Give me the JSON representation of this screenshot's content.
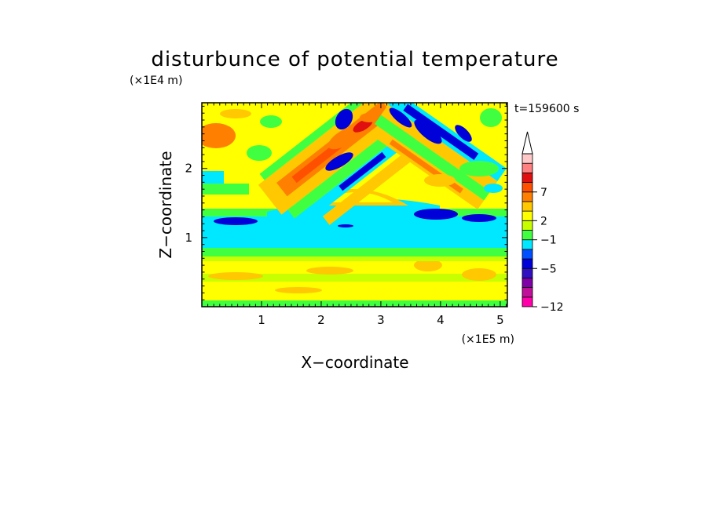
{
  "chart_data": {
    "type": "heatmap",
    "title": "disturbunce of potential temperature",
    "time_label": "t=159600 s",
    "xlabel": "X−coordinate",
    "ylabel": "Z−coordinate",
    "x_unit": "(×1E5 m)",
    "y_unit": "(×1E4 m)",
    "xlim": [
      0,
      5.12
    ],
    "ylim": [
      0,
      2.95
    ],
    "x_ticks": [
      {
        "v": 1,
        "label": "1"
      },
      {
        "v": 2,
        "label": "2"
      },
      {
        "v": 3,
        "label": "3"
      },
      {
        "v": 4,
        "label": "4"
      },
      {
        "v": 5,
        "label": "5"
      }
    ],
    "y_ticks": [
      {
        "v": 1,
        "label": "1"
      },
      {
        "v": 2,
        "label": "2"
      }
    ],
    "colorbar": {
      "levels": [
        {
          "color": "#ff00aa"
        },
        {
          "color": "#c0109a"
        },
        {
          "color": "#8000a8"
        },
        {
          "color": "#3010c0"
        },
        {
          "color": "#0000d8"
        },
        {
          "color": "#0050ff"
        },
        {
          "color": "#00e8ff"
        },
        {
          "color": "#40ff40"
        },
        {
          "color": "#c8ff00"
        },
        {
          "color": "#ffff00"
        },
        {
          "color": "#ffc800"
        },
        {
          "color": "#ff8000"
        },
        {
          "color": "#ff5000"
        },
        {
          "color": "#e01010"
        },
        {
          "color": "#ff8080"
        },
        {
          "color": "#ffc8c8"
        }
      ],
      "labels": [
        {
          "label": "−12",
          "index": 0
        },
        {
          "label": "−5",
          "index": 4
        },
        {
          "label": "−1",
          "index": 7
        },
        {
          "label": "2",
          "index": 9
        },
        {
          "label": "7",
          "index": 12
        }
      ]
    }
  }
}
